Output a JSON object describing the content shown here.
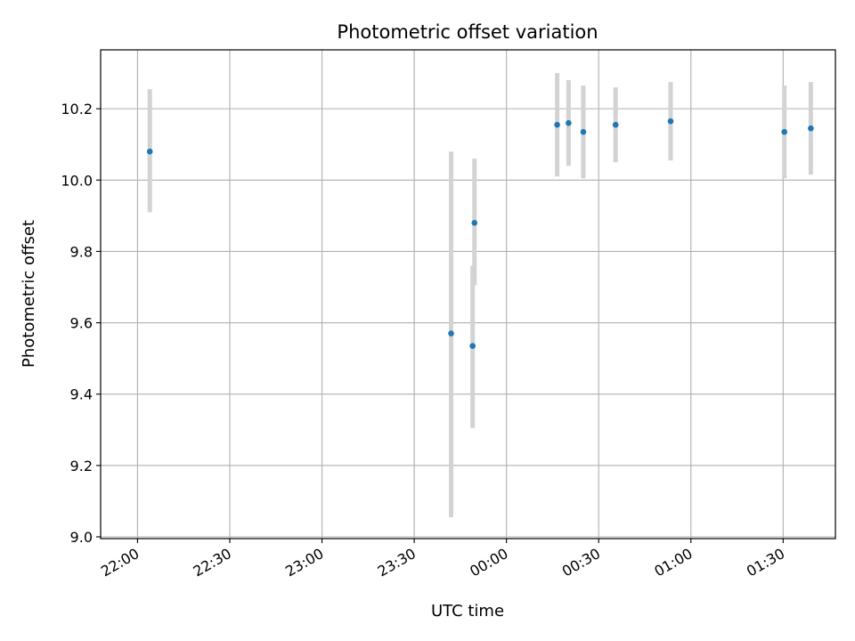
{
  "chart_data": {
    "type": "scatter",
    "title": "Photometric offset variation",
    "xlabel": "UTC time",
    "ylabel": "Photometric offset",
    "x_is_time": true,
    "xlim": [
      "21:48",
      "01:47"
    ],
    "ylim": [
      8.995,
      10.365
    ],
    "xticks": [
      "22:00",
      "22:30",
      "23:00",
      "23:30",
      "00:00",
      "00:30",
      "01:00",
      "01:30"
    ],
    "yticks": [
      "9.0",
      "9.2",
      "9.4",
      "9.6",
      "9.8",
      "10.0",
      "10.2"
    ],
    "grid": true,
    "colors": {
      "point": "#1f77b4",
      "errorbar": "#d3d3d3",
      "grid": "#b0b0b0"
    },
    "series": [
      {
        "points": [
          {
            "x": "22:04",
            "y": 10.08,
            "yerr_low": 9.91,
            "yerr_high": 10.255
          },
          {
            "x": "23:42",
            "y": 9.57,
            "yerr_low": 9.055,
            "yerr_high": 10.08
          },
          {
            "x": "23:49",
            "y": 9.535,
            "yerr_low": 9.305,
            "yerr_high": 9.76
          },
          {
            "x": "23:49.6",
            "y": 9.88,
            "yerr_low": 9.705,
            "yerr_high": 10.06
          },
          {
            "x": "00:16.5",
            "y": 10.155,
            "yerr_low": 10.01,
            "yerr_high": 10.3
          },
          {
            "x": "00:20.2",
            "y": 10.16,
            "yerr_low": 10.04,
            "yerr_high": 10.28
          },
          {
            "x": "00:25",
            "y": 10.135,
            "yerr_low": 10.005,
            "yerr_high": 10.265
          },
          {
            "x": "00:35.5",
            "y": 10.155,
            "yerr_low": 10.05,
            "yerr_high": 10.26
          },
          {
            "x": "00:53.4",
            "y": 10.165,
            "yerr_low": 10.055,
            "yerr_high": 10.275
          },
          {
            "x": "01:30.4",
            "y": 10.135,
            "yerr_low": 10.005,
            "yerr_high": 10.265
          },
          {
            "x": "01:39",
            "y": 10.145,
            "yerr_low": 10.015,
            "yerr_high": 10.275
          }
        ]
      }
    ]
  }
}
